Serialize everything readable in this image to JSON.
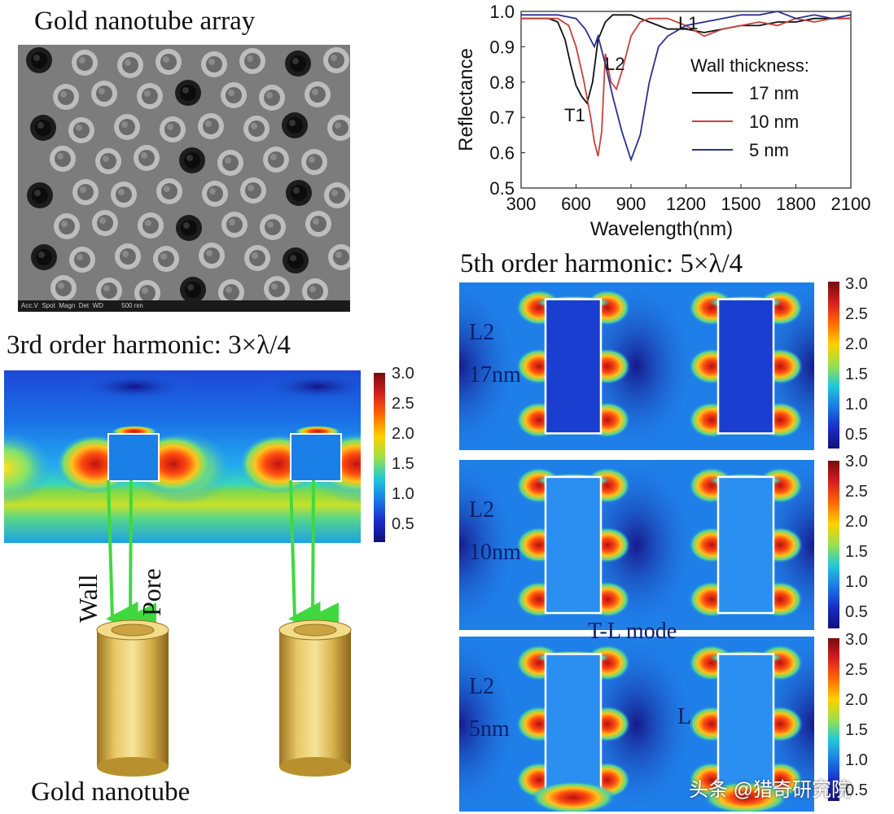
{
  "sem_panel": {
    "title": "Gold nanotube array",
    "footer_text": "Acc.V  Spot  Magn  Det  WD          500 nm"
  },
  "reflectance_chart": {
    "chart_data": {
      "type": "line",
      "xlabel": "Wavelength(nm)",
      "ylabel": "Reflectance",
      "xlim": [
        300,
        2100
      ],
      "ylim": [
        0.5,
        1.0
      ],
      "x_ticks": [
        "300",
        "600",
        "900",
        "1200",
        "1500",
        "1800",
        "2100"
      ],
      "y_ticks": [
        "0.5",
        "0.6",
        "0.7",
        "0.8",
        "0.9",
        "1.0"
      ],
      "legend_title": "Wall thickness:",
      "legend_position": "right",
      "series": [
        {
          "name": "17 nm",
          "color": "#111111",
          "x": [
            300,
            450,
            500,
            540,
            570,
            600,
            630,
            660,
            690,
            720,
            760,
            800,
            850,
            900,
            950,
            1000,
            1100,
            1200,
            1300,
            1400,
            1500,
            1600,
            1700,
            1800,
            1900,
            2000,
            2100
          ],
          "y": [
            0.98,
            0.98,
            0.97,
            0.92,
            0.85,
            0.79,
            0.76,
            0.74,
            0.8,
            0.92,
            0.97,
            0.99,
            0.99,
            0.99,
            0.98,
            0.97,
            0.95,
            0.95,
            0.94,
            0.95,
            0.96,
            0.96,
            0.97,
            0.97,
            0.98,
            0.98,
            0.98
          ]
        },
        {
          "name": "10 nm",
          "color": "#c8413b",
          "x": [
            300,
            500,
            560,
            600,
            640,
            680,
            700,
            720,
            740,
            760,
            790,
            820,
            850,
            900,
            950,
            1000,
            1100,
            1200,
            1300,
            1400,
            1500,
            1600,
            1700,
            1800,
            1900,
            2000,
            2100
          ],
          "y": [
            0.98,
            0.98,
            0.96,
            0.9,
            0.81,
            0.7,
            0.63,
            0.59,
            0.66,
            0.88,
            0.8,
            0.78,
            0.83,
            0.93,
            0.97,
            0.98,
            0.98,
            0.96,
            0.93,
            0.95,
            0.96,
            0.97,
            0.96,
            0.98,
            0.97,
            0.98,
            0.98
          ]
        },
        {
          "name": "5 nm",
          "color": "#2b2f8f",
          "x": [
            300,
            500,
            600,
            650,
            700,
            720,
            760,
            800,
            850,
            900,
            950,
            1000,
            1050,
            1100,
            1200,
            1300,
            1400,
            1500,
            1600,
            1700,
            1800,
            1900,
            2000,
            2100
          ],
          "y": [
            0.99,
            0.99,
            0.98,
            0.95,
            0.9,
            0.93,
            0.85,
            0.76,
            0.66,
            0.58,
            0.65,
            0.8,
            0.9,
            0.93,
            0.96,
            0.97,
            0.98,
            0.99,
            0.99,
            1.0,
            0.98,
            0.99,
            0.98,
            0.99
          ]
        }
      ],
      "annotations": [
        "L1",
        "L2",
        "T1"
      ]
    }
  },
  "harmonic3": {
    "title": "3rd order harmonic: 3×λ/4",
    "wall_label": "Wall",
    "pore_label": "Pore",
    "colorbar_ticks": [
      "3.0",
      "2.5",
      "2.0",
      "1.5",
      "1.0",
      "0.5"
    ]
  },
  "nanotube_caption": "Gold nanotube",
  "harmonic5": {
    "title": "5th order harmonic: 5×λ/4",
    "panels": [
      {
        "mode": "L2",
        "thickness": "17nm"
      },
      {
        "mode": "L2",
        "thickness": "10nm"
      },
      {
        "mode": "L2",
        "thickness": "5nm"
      }
    ],
    "tl_mode_label": "T-L mode",
    "l_marker": "L",
    "colorbar_ticks": [
      "3.0",
      "2.5",
      "2.0",
      "1.5",
      "1.0",
      "0.5"
    ]
  },
  "watermark": "头条 @猎奇研究院"
}
